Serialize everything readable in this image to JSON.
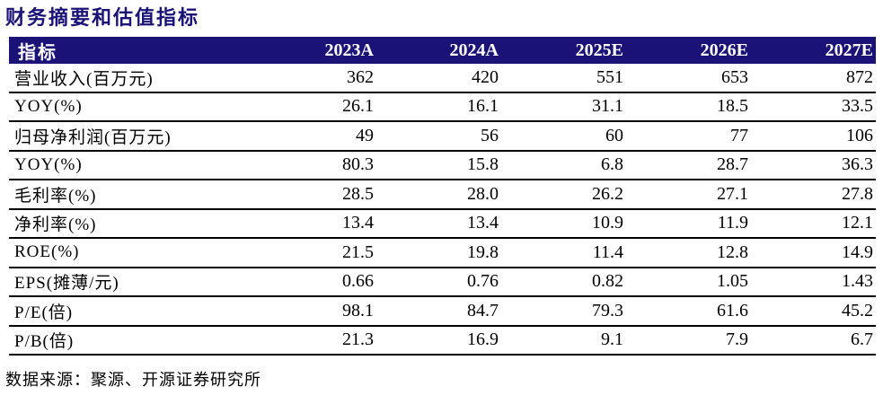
{
  "page": {
    "title": "财务摘要和估值指标",
    "source_note": "数据来源：聚源、开源证券研究所"
  },
  "colors": {
    "navy": "#1A1277",
    "line": "#000000",
    "header_text": "#FFFFFF"
  },
  "chart_data": {
    "type": "table",
    "title": "财务摘要和估值指标",
    "columns": [
      "指标",
      "2023A",
      "2024A",
      "2025E",
      "2026E",
      "2027E"
    ],
    "rows": [
      {
        "label": "营业收入(百万元)",
        "values": [
          "362",
          "420",
          "551",
          "653",
          "872"
        ]
      },
      {
        "label": "YOY(%)",
        "values": [
          "26.1",
          "16.1",
          "31.1",
          "18.5",
          "33.5"
        ]
      },
      {
        "label": "归母净利润(百万元)",
        "values": [
          "49",
          "56",
          "60",
          "77",
          "106"
        ]
      },
      {
        "label": "YOY(%)",
        "values": [
          "80.3",
          "15.8",
          "6.8",
          "28.7",
          "36.3"
        ]
      },
      {
        "label": "毛利率(%)",
        "values": [
          "28.5",
          "28.0",
          "26.2",
          "27.1",
          "27.8"
        ]
      },
      {
        "label": "净利率(%)",
        "values": [
          "13.4",
          "13.4",
          "10.9",
          "11.9",
          "12.1"
        ]
      },
      {
        "label": "ROE(%)",
        "values": [
          "21.5",
          "19.8",
          "11.4",
          "12.8",
          "14.9"
        ]
      },
      {
        "label": "EPS(摊薄/元)",
        "values": [
          "0.66",
          "0.76",
          "0.82",
          "1.05",
          "1.43"
        ]
      },
      {
        "label": "P/E(倍)",
        "values": [
          "98.1",
          "84.7",
          "79.3",
          "61.6",
          "45.2"
        ]
      },
      {
        "label": "P/B(倍)",
        "values": [
          "21.3",
          "16.9",
          "9.1",
          "7.9",
          "6.7"
        ]
      }
    ],
    "source": "数据来源：聚源、开源证券研究所"
  }
}
